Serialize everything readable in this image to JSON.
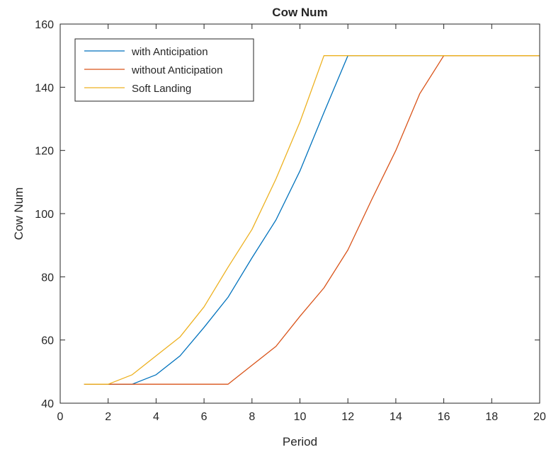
{
  "chart_data": {
    "type": "line",
    "title": "Cow Num",
    "xlabel": "Period",
    "ylabel": "Cow Num",
    "xlim": [
      0,
      20
    ],
    "ylim": [
      40,
      160
    ],
    "xticks": [
      0,
      2,
      4,
      6,
      8,
      10,
      12,
      14,
      16,
      18,
      20
    ],
    "yticks": [
      40,
      60,
      80,
      100,
      120,
      140,
      160
    ],
    "grid": false,
    "legend_position": "top-left",
    "series": [
      {
        "name": "with Anticipation",
        "color": "#0072BD",
        "x": [
          1,
          2,
          3,
          4,
          5,
          6,
          7,
          8,
          9,
          10,
          11,
          12,
          13,
          14,
          15,
          16,
          17,
          18,
          19,
          20
        ],
        "y": [
          46,
          46,
          46,
          49,
          55,
          64,
          73.5,
          86,
          98,
          113.5,
          132,
          150,
          150,
          150,
          150,
          150,
          150,
          150,
          150,
          150
        ]
      },
      {
        "name": "without Anticipation",
        "color": "#D95319",
        "x": [
          1,
          2,
          3,
          4,
          5,
          6,
          7,
          8,
          9,
          10,
          11,
          12,
          13,
          14,
          15,
          16,
          17,
          18,
          19,
          20
        ],
        "y": [
          46,
          46,
          46,
          46,
          46,
          46,
          46,
          52,
          58,
          67.5,
          76.5,
          88.5,
          104.5,
          120,
          138,
          150,
          150,
          150,
          150,
          150
        ]
      },
      {
        "name": "Soft Landing",
        "color": "#EDB120",
        "x": [
          1,
          2,
          3,
          4,
          5,
          6,
          7,
          8,
          9,
          10,
          11,
          12,
          13,
          14,
          15,
          16,
          17,
          18,
          19,
          20
        ],
        "y": [
          46,
          46,
          49,
          55,
          61,
          70.5,
          83,
          95,
          111,
          129,
          150,
          150,
          150,
          150,
          150,
          150,
          150,
          150,
          150,
          150
        ]
      }
    ]
  }
}
